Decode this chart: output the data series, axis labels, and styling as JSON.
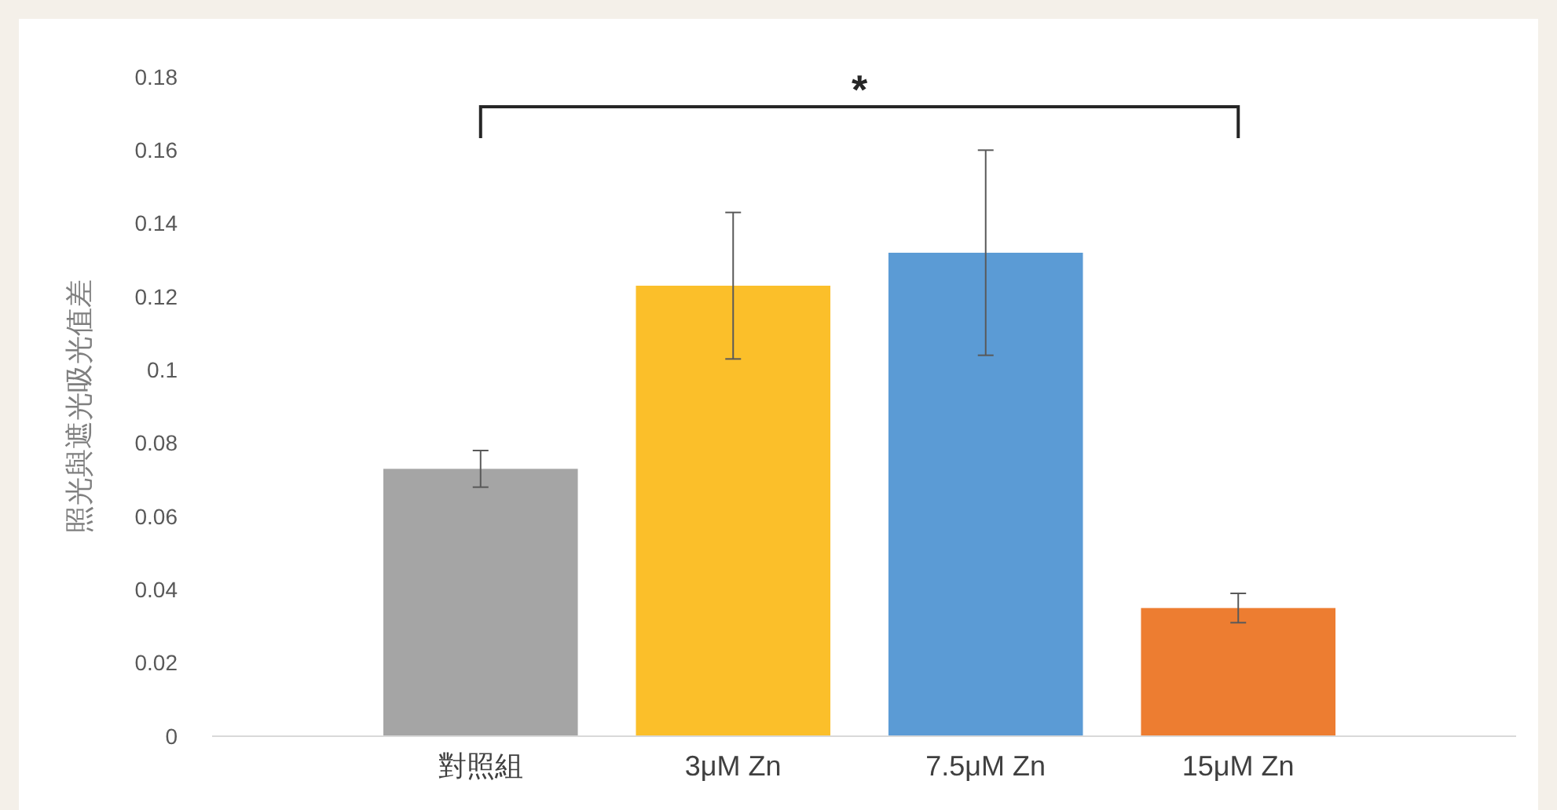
{
  "chart_data": {
    "type": "bar",
    "ylabel": "照光與遮光吸光值差",
    "categories": [
      "對照組",
      "3μM Zn",
      "7.5μM Zn",
      "15μM Zn"
    ],
    "values": [
      0.073,
      0.123,
      0.132,
      0.035
    ],
    "colors": [
      "#a5a5a5",
      "#fbbf2a",
      "#5b9bd5",
      "#ed7d31"
    ],
    "errors": [
      0.005,
      0.02,
      [
        0.104,
        0.16
      ],
      0.004
    ],
    "ylim": [
      0,
      0.18
    ],
    "yticks": [
      0,
      0.02,
      0.04,
      0.06,
      0.08,
      0.1,
      0.12,
      0.14,
      0.16,
      0.18
    ],
    "annotations": [
      "*"
    ]
  }
}
